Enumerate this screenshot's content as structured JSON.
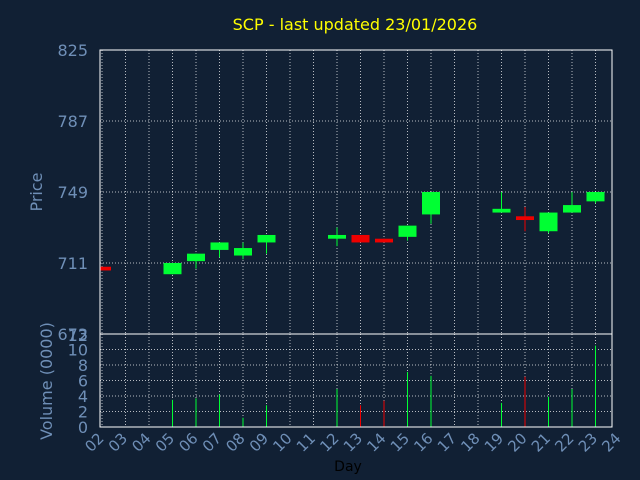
{
  "title": "SCP - last updated 23/01/2026",
  "colors": {
    "background": "#112034",
    "title": "#ffff00",
    "axis_text": "#6f8fb7",
    "grid": "#ffffff",
    "frame": "#ffffff",
    "up": "#00ff33",
    "down": "#ee0000"
  },
  "chart_data": [
    {
      "type": "candlestick",
      "ylabel": "Price",
      "ylim": [
        673,
        825
      ],
      "y_ticks": [
        "825",
        "787",
        "749",
        "711",
        "673"
      ],
      "grid": true,
      "candles": [
        {
          "day": "02",
          "open": 709,
          "close": 707,
          "high": 709,
          "low": 707,
          "dir": "down"
        },
        {
          "day": "05",
          "open": 705,
          "close": 711,
          "high": 711,
          "low": 705,
          "dir": "up"
        },
        {
          "day": "06",
          "open": 712,
          "close": 716,
          "high": 716,
          "low": 708,
          "dir": "up"
        },
        {
          "day": "07",
          "open": 718,
          "close": 722,
          "high": 722,
          "low": 714,
          "dir": "up"
        },
        {
          "day": "08",
          "open": 715,
          "close": 719,
          "high": 722,
          "low": 713,
          "dir": "up"
        },
        {
          "day": "09",
          "open": 722,
          "close": 726,
          "high": 726,
          "low": 716,
          "dir": "up"
        },
        {
          "day": "12",
          "open": 724,
          "close": 726,
          "high": 730,
          "low": 720,
          "dir": "up"
        },
        {
          "day": "13",
          "open": 726,
          "close": 722,
          "high": 726,
          "low": 722,
          "dir": "down"
        },
        {
          "day": "14",
          "open": 724,
          "close": 722,
          "high": 724,
          "low": 722,
          "dir": "down"
        },
        {
          "day": "15",
          "open": 725,
          "close": 731,
          "high": 731,
          "low": 723,
          "dir": "up"
        },
        {
          "day": "16",
          "open": 737,
          "close": 749,
          "high": 749,
          "low": 732,
          "dir": "up"
        },
        {
          "day": "19",
          "open": 738,
          "close": 740,
          "high": 749,
          "low": 738,
          "dir": "up"
        },
        {
          "day": "20",
          "open": 736,
          "close": 734,
          "high": 741,
          "low": 728,
          "dir": "down"
        },
        {
          "day": "21",
          "open": 728,
          "close": 738,
          "high": 738,
          "low": 727,
          "dir": "up"
        },
        {
          "day": "22",
          "open": 738,
          "close": 742,
          "high": 749,
          "low": 738,
          "dir": "up"
        },
        {
          "day": "23",
          "open": 744,
          "close": 749,
          "high": 749,
          "low": 743,
          "dir": "up"
        }
      ]
    },
    {
      "type": "bar",
      "ylabel": "Volume (0000)",
      "ylim": [
        0,
        12
      ],
      "y_ticks": [
        "12",
        "10",
        "8",
        "6",
        "4",
        "2",
        "0"
      ],
      "xlabel": "Day",
      "x_ticks": [
        "02",
        "03",
        "04",
        "05",
        "06",
        "07",
        "08",
        "09",
        "10",
        "11",
        "12",
        "13",
        "14",
        "15",
        "16",
        "17",
        "18",
        "19",
        "20",
        "21",
        "22",
        "23",
        "24"
      ],
      "grid": true,
      "bars": [
        {
          "day": "05",
          "value": 3.5,
          "dir": "up"
        },
        {
          "day": "06",
          "value": 3.7,
          "dir": "up"
        },
        {
          "day": "07",
          "value": 4.2,
          "dir": "up"
        },
        {
          "day": "08",
          "value": 1.2,
          "dir": "up"
        },
        {
          "day": "09",
          "value": 2.8,
          "dir": "up"
        },
        {
          "day": "12",
          "value": 4.9,
          "dir": "up"
        },
        {
          "day": "13",
          "value": 2.8,
          "dir": "down"
        },
        {
          "day": "14",
          "value": 3.4,
          "dir": "down"
        },
        {
          "day": "15",
          "value": 7.1,
          "dir": "up"
        },
        {
          "day": "16",
          "value": 6.6,
          "dir": "up"
        },
        {
          "day": "19",
          "value": 3.1,
          "dir": "up"
        },
        {
          "day": "20",
          "value": 6.5,
          "dir": "down"
        },
        {
          "day": "21",
          "value": 3.9,
          "dir": "up"
        },
        {
          "day": "22",
          "value": 4.9,
          "dir": "up"
        },
        {
          "day": "23",
          "value": 10.5,
          "dir": "up"
        }
      ]
    }
  ]
}
